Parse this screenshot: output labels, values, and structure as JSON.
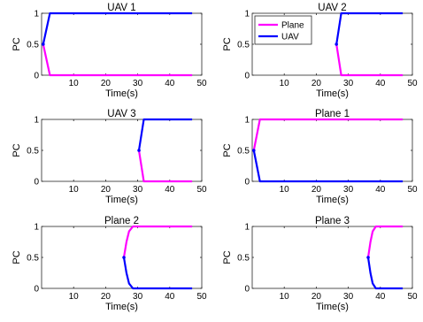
{
  "chart_data": [
    {
      "type": "line",
      "title": "UAV 1",
      "xlabel": "Time(s)",
      "ylabel": "PC",
      "xlim": [
        0,
        50
      ],
      "ylim": [
        0,
        1
      ],
      "xticks": [
        10,
        20,
        30,
        40,
        50
      ],
      "yticks": [
        0,
        0.5,
        1
      ],
      "series": [
        {
          "color": "#ff00ff",
          "x": [
            0.5,
            2.6,
            47
          ],
          "y": [
            0.5,
            0,
            0
          ]
        },
        {
          "color": "#0000ff",
          "x": [
            0.5,
            2.6,
            47
          ],
          "y": [
            0.5,
            1,
            1
          ]
        }
      ],
      "marker": {
        "x": 0.5,
        "y": 0.5
      }
    },
    {
      "type": "line",
      "title": "UAV 2",
      "xlabel": "Time(s)",
      "ylabel": "PC",
      "xlim": [
        0,
        50
      ],
      "ylim": [
        0,
        1
      ],
      "xticks": [
        10,
        20,
        30,
        40,
        50
      ],
      "yticks": [
        0,
        0.5,
        1
      ],
      "legend": {
        "position": "top-left",
        "entries": [
          {
            "label": "Plane",
            "color": "#ff00ff"
          },
          {
            "label": "UAV",
            "color": "#0000ff"
          }
        ]
      },
      "series": [
        {
          "color": "#ff00ff",
          "x": [
            26.3,
            27.8,
            47
          ],
          "y": [
            0.5,
            0,
            0
          ]
        },
        {
          "color": "#0000ff",
          "x": [
            26.3,
            27.8,
            47
          ],
          "y": [
            0.5,
            1,
            1
          ]
        }
      ],
      "marker": {
        "x": 26.3,
        "y": 0.5
      }
    },
    {
      "type": "line",
      "title": "UAV 3",
      "xlabel": "Time(s)",
      "ylabel": "PC",
      "xlim": [
        0,
        50
      ],
      "ylim": [
        0,
        1
      ],
      "xticks": [
        10,
        20,
        30,
        40,
        50
      ],
      "yticks": [
        0,
        0.5,
        1
      ],
      "series": [
        {
          "color": "#ff00ff",
          "x": [
            30.4,
            31.9,
            47
          ],
          "y": [
            0.5,
            0,
            0
          ]
        },
        {
          "color": "#0000ff",
          "x": [
            30.4,
            31.9,
            47
          ],
          "y": [
            0.5,
            1,
            1
          ]
        }
      ],
      "marker": {
        "x": 30.4,
        "y": 0.5
      }
    },
    {
      "type": "line",
      "title": "Plane 1",
      "xlabel": "Time(s)",
      "ylabel": "PC",
      "xlim": [
        0,
        50
      ],
      "ylim": [
        0,
        1
      ],
      "xticks": [
        10,
        20,
        30,
        40,
        50
      ],
      "yticks": [
        0,
        0.5,
        1
      ],
      "series": [
        {
          "color": "#ff00ff",
          "x": [
            0.5,
            2.4,
            47
          ],
          "y": [
            0.5,
            1,
            1
          ]
        },
        {
          "color": "#0000ff",
          "x": [
            0.5,
            2.4,
            47
          ],
          "y": [
            0.5,
            0,
            0
          ]
        }
      ],
      "marker": {
        "x": 0.5,
        "y": 0.5
      }
    },
    {
      "type": "line",
      "title": "Plane 2",
      "xlabel": "Time(s)",
      "ylabel": "PC",
      "xlim": [
        0,
        50
      ],
      "ylim": [
        0,
        1
      ],
      "xticks": [
        10,
        20,
        30,
        40,
        50
      ],
      "yticks": [
        0,
        0.5,
        1
      ],
      "series": [
        {
          "color": "#ff00ff",
          "x": [
            25.7,
            26.5,
            27.3,
            28.5,
            47
          ],
          "y": [
            0.5,
            0.75,
            0.92,
            1,
            1
          ]
        },
        {
          "color": "#0000ff",
          "x": [
            25.7,
            26.5,
            27.3,
            28.5,
            47
          ],
          "y": [
            0.5,
            0.25,
            0.08,
            0,
            0
          ]
        }
      ],
      "marker": {
        "x": 25.7,
        "y": 0.5
      }
    },
    {
      "type": "line",
      "title": "Plane 3",
      "xlabel": "Time(s)",
      "ylabel": "PC",
      "xlim": [
        0,
        50
      ],
      "ylim": [
        0,
        1
      ],
      "xticks": [
        10,
        20,
        30,
        40,
        50
      ],
      "yticks": [
        0,
        0.5,
        1
      ],
      "series": [
        {
          "color": "#ff00ff",
          "x": [
            36.2,
            36.9,
            37.6,
            38.6,
            47
          ],
          "y": [
            0.5,
            0.75,
            0.92,
            1,
            1
          ]
        },
        {
          "color": "#0000ff",
          "x": [
            36.2,
            36.9,
            37.6,
            38.6,
            47
          ],
          "y": [
            0.5,
            0.25,
            0.08,
            0,
            0
          ]
        }
      ],
      "marker": {
        "x": 36.2,
        "y": 0.5
      }
    }
  ]
}
